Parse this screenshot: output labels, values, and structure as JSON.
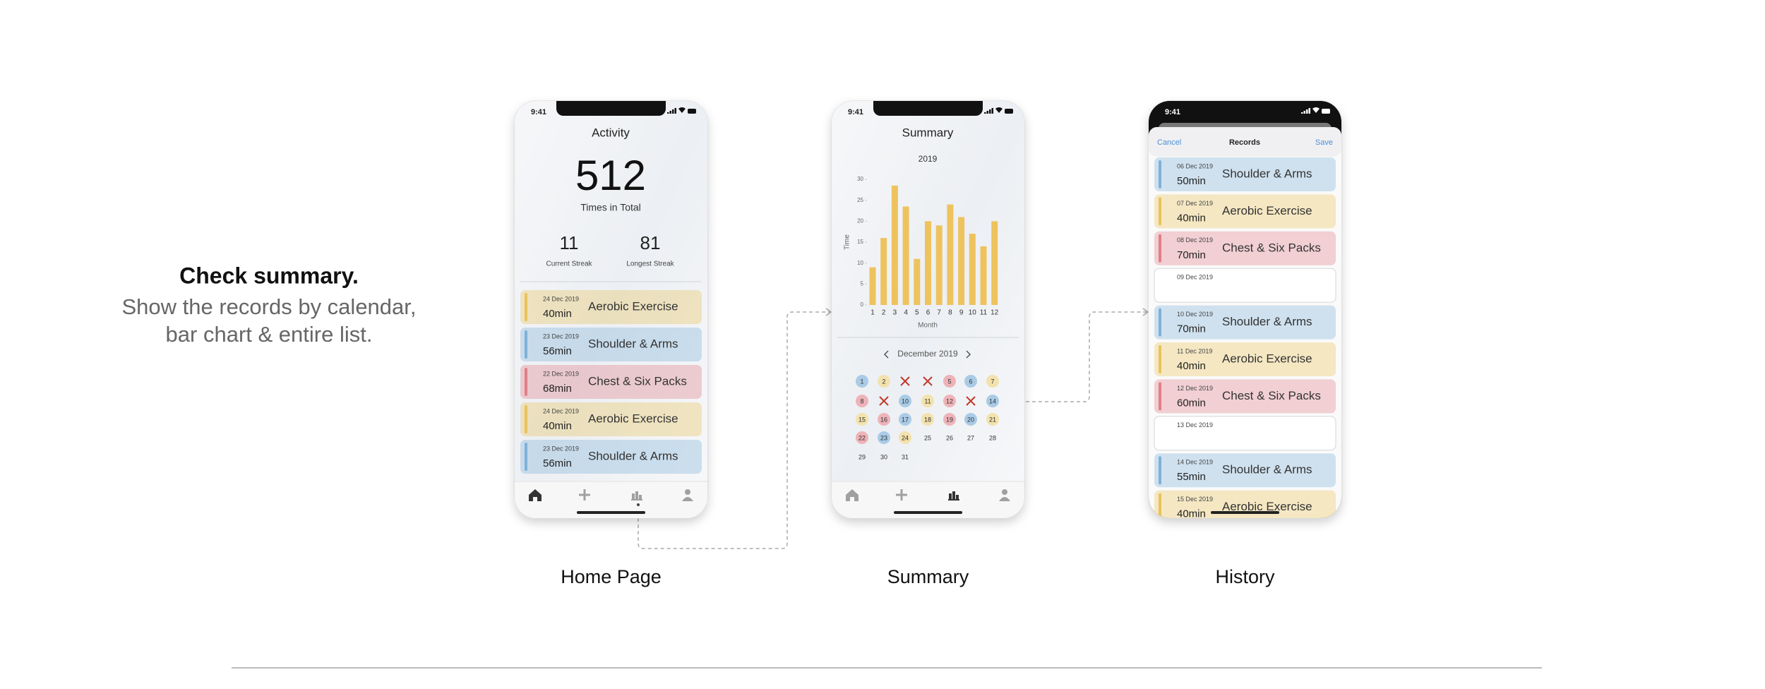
{
  "intro": {
    "title": "Check summary.",
    "lines": [
      "Show the records by calendar,",
      "bar chart & entire list."
    ]
  },
  "screens": [
    {
      "caption": "Home Page",
      "status_time": "9:41",
      "title": "Activity",
      "total": "512",
      "total_label": "Times in Total",
      "stats": [
        {
          "value": "11",
          "label": "Current Streak"
        },
        {
          "value": "81",
          "label": "Longest Streak"
        }
      ],
      "records": [
        {
          "date": "24 Dec 2019",
          "duration": "40min",
          "name": "Aerobic Exercise",
          "color": "#e8c35a"
        },
        {
          "date": "23 Dec 2019",
          "duration": "56min",
          "name": "Shoulder & Arms",
          "color": "#7fb1d8"
        },
        {
          "date": "22 Dec 2019",
          "duration": "68min",
          "name": "Chest & Six Packs",
          "color": "#e07f88"
        },
        {
          "date": "24 Dec 2019",
          "duration": "40min",
          "name": "Aerobic Exercise",
          "color": "#e8c35a"
        },
        {
          "date": "23 Dec 2019",
          "duration": "56min",
          "name": "Shoulder & Arms",
          "color": "#7fb1d8"
        }
      ]
    },
    {
      "caption": "Summary",
      "status_time": "9:41",
      "title": "Summary",
      "calendar": {
        "month": "December 2019",
        "days": [
          {
            "label": "1",
            "color": "#a9cbe6"
          },
          {
            "label": "2",
            "color": "#f3e2ad"
          },
          {
            "missed": true
          },
          {
            "missed": true
          },
          {
            "label": "5",
            "color": "#eeb3b8"
          },
          {
            "label": "6",
            "color": "#a9cbe6"
          },
          {
            "label": "7",
            "color": "#f3e2ad"
          },
          {
            "label": "8",
            "color": "#eeb3b8"
          },
          {
            "missed": true
          },
          {
            "label": "10",
            "color": "#a9cbe6"
          },
          {
            "label": "11",
            "color": "#f3e2ad"
          },
          {
            "label": "12",
            "color": "#eeb3b8"
          },
          {
            "missed": true
          },
          {
            "label": "14",
            "color": "#a9cbe6"
          },
          {
            "label": "15",
            "color": "#f3e2ad"
          },
          {
            "label": "16",
            "color": "#eeb3b8"
          },
          {
            "label": "17",
            "color": "#a9cbe6"
          },
          {
            "label": "18",
            "color": "#f3e2ad"
          },
          {
            "label": "19",
            "color": "#eeb3b8"
          },
          {
            "label": "20",
            "color": "#a9cbe6"
          },
          {
            "label": "21",
            "color": "#f3e2ad"
          },
          {
            "label": "22",
            "color": "#eeb3b8"
          },
          {
            "label": "23",
            "color": "#a9cbe6"
          },
          {
            "label": "24",
            "color": "#f3e2ad"
          },
          {
            "label": "25"
          },
          {
            "label": "26"
          },
          {
            "label": "27"
          },
          {
            "label": "28"
          },
          {
            "label": "29"
          },
          {
            "label": "30"
          },
          {
            "label": "31"
          }
        ]
      }
    },
    {
      "caption": "History",
      "status_time": "9:41",
      "title": "Records",
      "cancel": "Cancel",
      "save": "Save",
      "records": [
        {
          "date": "06 Dec 2019",
          "duration": "50min",
          "name": "Shoulder & Arms",
          "color": "#7fb1d8"
        },
        {
          "date": "07 Dec 2019",
          "duration": "40min",
          "name": "Aerobic Exercise",
          "color": "#e8c35a"
        },
        {
          "date": "08 Dec 2019",
          "duration": "70min",
          "name": "Chest & Six Packs",
          "color": "#e07f88"
        },
        {
          "date": "09 Dec 2019"
        },
        {
          "date": "10 Dec 2019",
          "duration": "70min",
          "name": "Shoulder & Arms",
          "color": "#7fb1d8"
        },
        {
          "date": "11 Dec 2019",
          "duration": "40min",
          "name": "Aerobic Exercise",
          "color": "#e8c35a"
        },
        {
          "date": "12 Dec 2019",
          "duration": "60min",
          "name": "Chest & Six Packs",
          "color": "#e07f88"
        },
        {
          "date": "13 Dec 2019"
        },
        {
          "date": "14 Dec 2019",
          "duration": "55min",
          "name": "Shoulder & Arms",
          "color": "#7fb1d8"
        },
        {
          "date": "15 Dec 2019",
          "duration": "40min",
          "name": "Aerobic Exercise",
          "color": "#e8c35a"
        }
      ]
    }
  ],
  "chart_data": {
    "type": "bar",
    "title": "2019",
    "x_label": "Month",
    "y_label": "Time",
    "categories": [
      "1",
      "2",
      "3",
      "4",
      "5",
      "6",
      "7",
      "8",
      "9",
      "10",
      "11",
      "12"
    ],
    "values": [
      9,
      16,
      28.5,
      23.5,
      11,
      20,
      19,
      24,
      21,
      17,
      14,
      20
    ],
    "color": "#eec35e",
    "ylim": [
      0,
      30
    ],
    "yticks": [
      0,
      5,
      10,
      15,
      20,
      25,
      30
    ]
  }
}
